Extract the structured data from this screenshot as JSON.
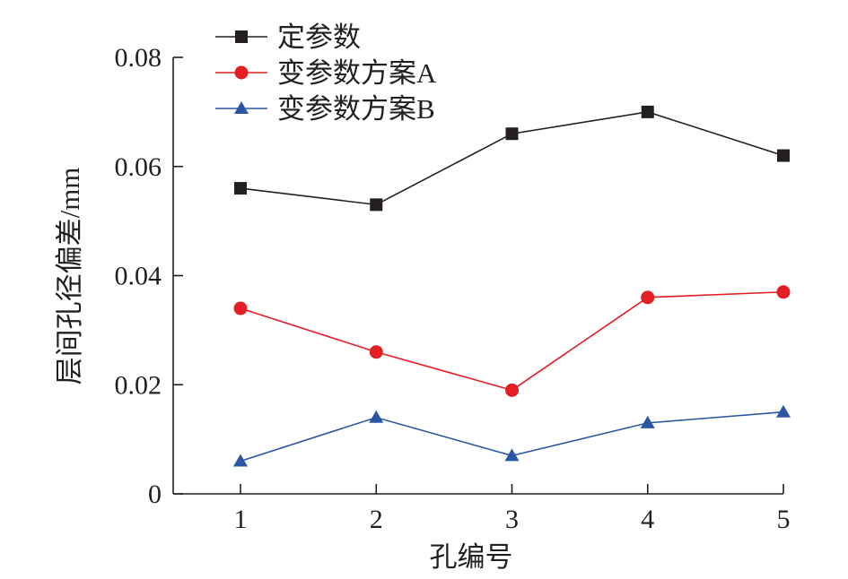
{
  "chart_data": {
    "type": "line",
    "title": "",
    "xlabel": "孔编号",
    "ylabel": "层间孔径偏差/mm",
    "x": [
      1,
      2,
      3,
      4,
      5
    ],
    "x_ticks": [
      "1",
      "2",
      "3",
      "4",
      "5"
    ],
    "y_ticks": [
      "0",
      "0.02",
      "0.04",
      "0.06",
      "0.08"
    ],
    "xlim": [
      0.5,
      5.0
    ],
    "ylim": [
      0,
      0.08
    ],
    "grid": false,
    "legend_position": "top-left",
    "series": [
      {
        "name": "定参数",
        "values": [
          0.056,
          0.053,
          0.066,
          0.07,
          0.062
        ],
        "color": "#231f20",
        "marker": "square"
      },
      {
        "name": "变参数方案A",
        "values": [
          0.034,
          0.026,
          0.019,
          0.036,
          0.037
        ],
        "color": "#e31e24",
        "marker": "circle"
      },
      {
        "name": "变参数方案B",
        "values": [
          0.006,
          0.014,
          0.007,
          0.013,
          0.015
        ],
        "color": "#2a57a3",
        "marker": "triangle"
      }
    ]
  }
}
